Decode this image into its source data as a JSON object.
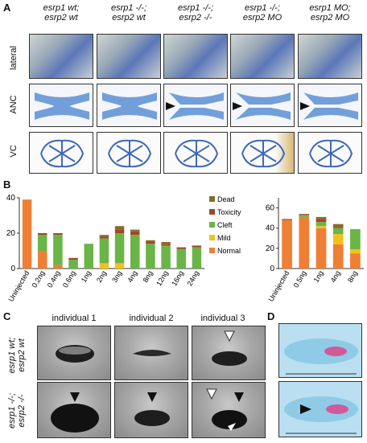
{
  "panelA": {
    "letter": "A",
    "columns": [
      {
        "line1": "esrp1 wt;",
        "line2": "esrp2 wt"
      },
      {
        "line1": "esrp1 -/-;",
        "line2": "esrp2 wt"
      },
      {
        "line1": "esrp1 -/-;",
        "line2": "esrp2 -/-"
      },
      {
        "line1": "esrp1 -/-;",
        "line2": "esrp2 MO"
      },
      {
        "line1": "esrp1 MO;",
        "line2": "esrp2 MO"
      }
    ],
    "rows": [
      "lateral",
      "ANC",
      "VC"
    ]
  },
  "panelB": {
    "letter": "B",
    "colors": {
      "dead": "#8b6a2a",
      "toxicity": "#a0482a",
      "cleft": "#6ab547",
      "mild": "#f2c21a",
      "normal": "#ef7f35"
    },
    "legend": [
      "Dead",
      "Toxicity",
      "Cleft",
      "Mild",
      "Normal"
    ]
  },
  "chart_data": [
    {
      "type": "bar",
      "stacked": true,
      "categories": [
        "Uninjected",
        "0.2ng",
        "0.4ng",
        "0.6ng",
        "1ng",
        "2ng",
        "3ng",
        "4ng",
        "8ng",
        "12ng",
        "16ng",
        "24ng"
      ],
      "series": [
        {
          "name": "Normal",
          "values": [
            39,
            10,
            2,
            0,
            0,
            0,
            0,
            0,
            0,
            0,
            0,
            0
          ]
        },
        {
          "name": "Mild",
          "values": [
            0,
            0,
            0,
            0,
            0,
            3,
            3,
            0,
            0,
            0,
            0,
            0
          ]
        },
        {
          "name": "Cleft",
          "values": [
            0,
            9,
            17,
            5,
            14,
            14,
            17,
            19,
            14,
            13,
            11,
            12
          ]
        },
        {
          "name": "Toxicity",
          "values": [
            0,
            1,
            1,
            1,
            0,
            1,
            2,
            2,
            1,
            1,
            1,
            1
          ]
        },
        {
          "name": "Dead",
          "values": [
            0,
            0,
            0,
            0,
            0,
            1,
            2,
            1,
            1,
            1,
            0,
            0
          ]
        }
      ],
      "ylim": [
        0,
        40
      ],
      "yticks": [
        0,
        20,
        40
      ]
    },
    {
      "type": "bar",
      "stacked": true,
      "categories": [
        "Uninjected",
        "0.5ng",
        "1ng",
        "4ng",
        "8ng"
      ],
      "series": [
        {
          "name": "Normal",
          "values": [
            48,
            51,
            40,
            24,
            15
          ]
        },
        {
          "name": "Mild",
          "values": [
            0,
            0,
            2,
            10,
            4
          ]
        },
        {
          "name": "Cleft",
          "values": [
            0,
            2,
            4,
            6,
            20
          ]
        },
        {
          "name": "Toxicity",
          "values": [
            1,
            1,
            3,
            1,
            0
          ]
        },
        {
          "name": "Dead",
          "values": [
            0,
            0,
            2,
            3,
            0
          ]
        }
      ],
      "ylim": [
        0,
        70
      ],
      "yticks": [
        0,
        20,
        40,
        60
      ]
    }
  ],
  "panelC": {
    "letter": "C",
    "columns": [
      "individual 1",
      "individual 2",
      "individual 3"
    ],
    "rows": [
      {
        "line1": "esrp1 wt;",
        "line2": "esrp2 wt"
      },
      {
        "line1": "esrp1 -/-;",
        "line2": "esrp2 -/-"
      }
    ]
  },
  "panelD": {
    "letter": "D"
  }
}
